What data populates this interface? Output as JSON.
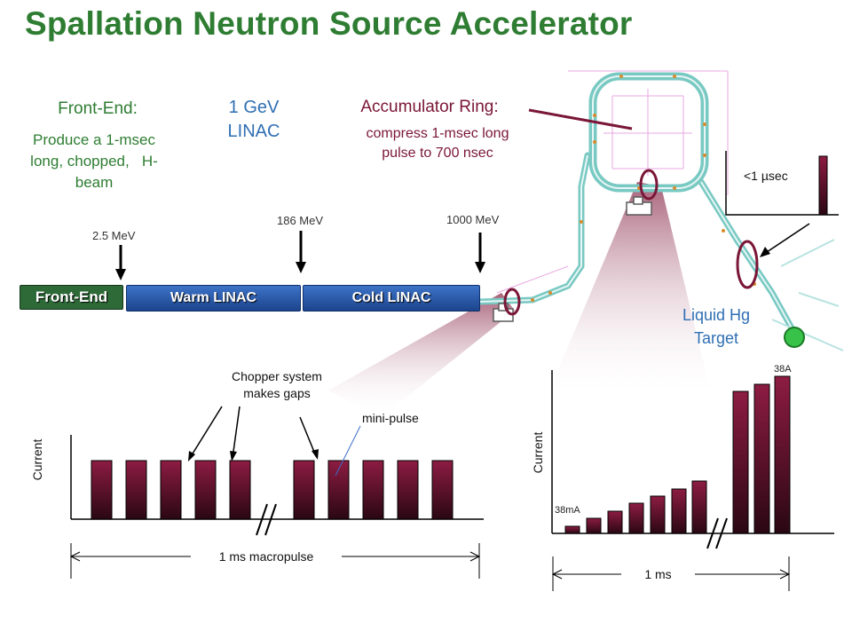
{
  "title": "Spallation Neutron Source Accelerator",
  "front_end_note": {
    "heading": "Front-End:",
    "line1": "Produce a 1-msec",
    "line2": "long, chopped,   H-",
    "line3": "beam"
  },
  "linac_note": {
    "line1": "1 GeV",
    "line2": "LINAC"
  },
  "ring_note": {
    "heading": "Accumulator Ring:",
    "line1": "compress 1-msec long",
    "line2": "pulse to 700 nsec"
  },
  "energies": {
    "e1": "2.5 MeV",
    "e2": "186 MeV",
    "e3": "1000 MeV"
  },
  "segments": {
    "front_end": "Front-End",
    "warm": "Warm LINAC",
    "cold": "Cold LINAC"
  },
  "target_note": {
    "line1": "Liquid Hg",
    "line2": "Target"
  },
  "pulse_inset": {
    "label": "<1 µsec"
  },
  "left_plot": {
    "ylabel": "Current",
    "chopper_line1": "Chopper system",
    "chopper_line2": "makes gaps",
    "mini_pulse": "mini-pulse",
    "span": "1 ms macropulse"
  },
  "right_plot": {
    "ylabel": "Current",
    "low": "38mA",
    "high": "38A",
    "span": "1 ms"
  },
  "colors": {
    "title_green": "#2e7d32",
    "front_end_green": "#2d6a37",
    "linac_blue": "#2456a8",
    "bar_maroon": "#7a1636",
    "text_blue": "#2f6fb3"
  }
}
